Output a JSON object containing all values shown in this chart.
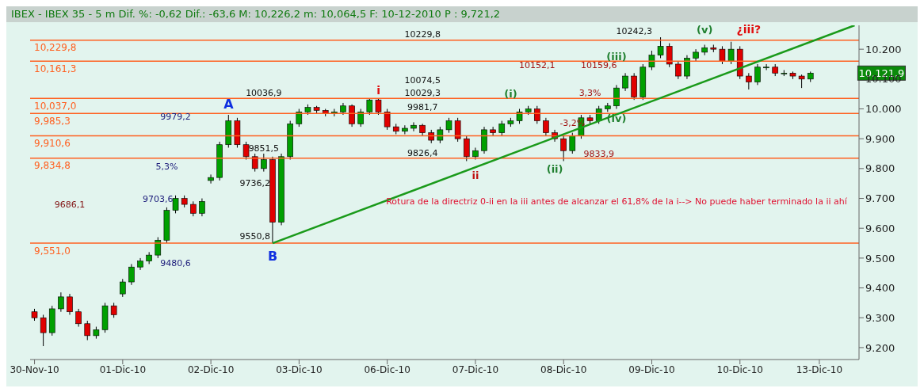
{
  "chart_data": {
    "type": "candlestick",
    "title": "IBEX - IBEX 35 - 5 m Dif. %: -0,62 Dif.: -63,6 M: 10,226,2 m: 10,064,5 F: 10-12-2010 P : 9,721,2",
    "categories": [
      "30-Nov-10",
      null,
      null,
      null,
      null,
      null,
      null,
      null,
      null,
      null,
      "01-Dic-10",
      null,
      null,
      null,
      null,
      null,
      null,
      null,
      null,
      null,
      "02-Dic-10",
      null,
      null,
      null,
      null,
      null,
      null,
      null,
      null,
      null,
      "03-Dic-10",
      null,
      null,
      null,
      null,
      null,
      null,
      null,
      null,
      null,
      "06-Dic-10",
      null,
      null,
      null,
      null,
      null,
      null,
      null,
      null,
      null,
      "07-Dic-10",
      null,
      null,
      null,
      null,
      null,
      null,
      null,
      null,
      null,
      "08-Dic-10",
      null,
      null,
      null,
      null,
      null,
      null,
      null,
      null,
      null,
      "09-Dic-10",
      null,
      null,
      null,
      null,
      null,
      null,
      null,
      null,
      null,
      "10-Dic-10",
      null,
      null,
      null,
      null,
      null,
      null,
      null,
      null,
      "13-Dic-10",
      null,
      null,
      null,
      null
    ],
    "ohlc": [
      [
        9320,
        9330,
        9290,
        9300
      ],
      [
        9300,
        9310,
        9205,
        9250
      ],
      [
        9250,
        9340,
        9240,
        9330
      ],
      [
        9330,
        9385,
        9320,
        9370
      ],
      [
        9370,
        9380,
        9310,
        9320
      ],
      [
        9320,
        9330,
        9270,
        9280
      ],
      [
        9280,
        9290,
        9225,
        9240
      ],
      [
        9240,
        9270,
        9230,
        9260
      ],
      [
        9260,
        9350,
        9250,
        9340
      ],
      [
        9340,
        9350,
        9300,
        9310
      ],
      [
        9380,
        9430,
        9370,
        9420
      ],
      [
        9420,
        9480,
        9410,
        9470
      ],
      [
        9470,
        9500,
        9460,
        9490
      ],
      [
        9490,
        9520,
        9480,
        9510
      ],
      [
        9510,
        9570,
        9500,
        9560
      ],
      [
        9560,
        9670,
        9550,
        9660
      ],
      [
        9660,
        9710,
        9650,
        9700
      ],
      [
        9700,
        9710,
        9670,
        9680
      ],
      [
        9680,
        9690,
        9640,
        9650
      ],
      [
        9650,
        9700,
        9640,
        9690
      ],
      [
        9760,
        9780,
        9750,
        9770
      ],
      [
        9770,
        9890,
        9760,
        9880
      ],
      [
        9880,
        9980,
        9870,
        9960
      ],
      [
        9960,
        9970,
        9870,
        9880
      ],
      [
        9880,
        9890,
        9830,
        9840
      ],
      [
        9840,
        9850,
        9790,
        9800
      ],
      [
        9800,
        9850,
        9790,
        9830
      ],
      [
        9830,
        9840,
        9550,
        9620
      ],
      [
        9620,
        9850,
        9610,
        9840
      ],
      [
        9840,
        9960,
        9830,
        9950
      ],
      [
        9950,
        10000,
        9940,
        9990
      ],
      [
        9990,
        10015,
        9980,
        10005
      ],
      [
        10005,
        10010,
        9985,
        9995
      ],
      [
        9995,
        10000,
        9975,
        9985
      ],
      [
        9985,
        10000,
        9975,
        9990
      ],
      [
        9990,
        10020,
        9980,
        10010
      ],
      [
        10010,
        10015,
        9940,
        9950
      ],
      [
        9950,
        10000,
        9940,
        9990
      ],
      [
        9990,
        10035,
        9980,
        10030
      ],
      [
        10030,
        10035,
        9980,
        9990
      ],
      [
        9990,
        10000,
        9930,
        9940
      ],
      [
        9940,
        9950,
        9915,
        9925
      ],
      [
        9925,
        9945,
        9915,
        9935
      ],
      [
        9935,
        9955,
        9925,
        9945
      ],
      [
        9945,
        9950,
        9910,
        9920
      ],
      [
        9920,
        9930,
        9885,
        9895
      ],
      [
        9895,
        9940,
        9885,
        9930
      ],
      [
        9930,
        9970,
        9920,
        9960
      ],
      [
        9960,
        9970,
        9890,
        9900
      ],
      [
        9900,
        9910,
        9825,
        9840
      ],
      [
        9840,
        9870,
        9830,
        9860
      ],
      [
        9860,
        9940,
        9850,
        9930
      ],
      [
        9930,
        9940,
        9910,
        9920
      ],
      [
        9920,
        9960,
        9910,
        9950
      ],
      [
        9950,
        9970,
        9940,
        9960
      ],
      [
        9960,
        10000,
        9950,
        9990
      ],
      [
        9990,
        10010,
        9980,
        10000
      ],
      [
        10000,
        10010,
        9950,
        9960
      ],
      [
        9960,
        9970,
        9910,
        9920
      ],
      [
        9920,
        9930,
        9890,
        9900
      ],
      [
        9900,
        9910,
        9825,
        9860
      ],
      [
        9860,
        9920,
        9850,
        9910
      ],
      [
        9910,
        9980,
        9900,
        9970
      ],
      [
        9970,
        9980,
        9950,
        9960
      ],
      [
        9960,
        10010,
        9950,
        10000
      ],
      [
        10000,
        10020,
        9990,
        10010
      ],
      [
        10010,
        10080,
        10000,
        10070
      ],
      [
        10070,
        10120,
        10060,
        10110
      ],
      [
        10110,
        10120,
        10030,
        10040
      ],
      [
        10040,
        10150,
        10030,
        10140
      ],
      [
        10140,
        10195,
        10130,
        10180
      ],
      [
        10180,
        10240,
        10170,
        10210
      ],
      [
        10210,
        10220,
        10140,
        10150
      ],
      [
        10150,
        10160,
        10100,
        10110
      ],
      [
        10110,
        10180,
        10100,
        10170
      ],
      [
        10170,
        10200,
        10160,
        10190
      ],
      [
        10190,
        10215,
        10180,
        10205
      ],
      [
        10205,
        10215,
        10190,
        10200
      ],
      [
        10200,
        10210,
        10150,
        10160
      ],
      [
        10160,
        10225,
        10150,
        10200
      ],
      [
        10200,
        10210,
        10100,
        10110
      ],
      [
        10110,
        10120,
        10065,
        10090
      ],
      [
        10090,
        10150,
        10080,
        10140
      ],
      [
        10140,
        10150,
        10130,
        10140
      ],
      [
        10140,
        10150,
        10110,
        10120
      ],
      [
        10120,
        10130,
        10110,
        10120
      ],
      [
        10120,
        10125,
        10100,
        10110
      ],
      [
        10110,
        10115,
        10070,
        10100
      ],
      [
        10100,
        10125,
        10090,
        10120
      ],
      null,
      null,
      null,
      null,
      null
    ],
    "series": [
      {
        "type": "line",
        "color": "#1a9a1a",
        "values": [
          null,
          null,
          null,
          null,
          null,
          null,
          null,
          null,
          null,
          null,
          null,
          null,
          null,
          null,
          null,
          null,
          null,
          null,
          null,
          null,
          null,
          null,
          null,
          null,
          null,
          null,
          null,
          9550,
          null,
          null,
          null,
          null,
          null,
          null,
          null,
          null,
          null,
          null,
          null,
          null,
          null,
          null,
          null,
          null,
          null,
          null,
          null,
          null,
          null,
          null,
          null,
          null,
          null,
          null,
          null,
          null,
          null,
          null,
          null,
          null,
          null,
          null,
          null,
          null,
          null,
          null,
          null,
          null,
          null,
          null,
          null,
          null,
          null,
          null,
          null,
          null,
          null,
          null,
          null,
          null,
          null,
          null,
          null,
          null,
          null,
          null,
          null,
          null,
          null,
          null,
          null,
          null,
          null,
          10280
        ]
      }
    ],
    "ylim": [
      9160,
      10280
    ],
    "yticks": [
      {
        "value": 9200,
        "label": "9.200"
      },
      {
        "value": 9300,
        "label": "9.300"
      },
      {
        "value": 9400,
        "label": "9.400"
      },
      {
        "value": 9500,
        "label": "9.500"
      },
      {
        "value": 9600,
        "label": "9.600"
      },
      {
        "value": 9700,
        "label": "9.700"
      },
      {
        "value": 9800,
        "label": "9.800"
      },
      {
        "value": 9900,
        "label": "9.900"
      },
      {
        "value": 10000,
        "label": "10.000"
      },
      {
        "value": 10100,
        "label": "10.100"
      },
      {
        "value": 10200,
        "label": "10.200"
      }
    ],
    "ref_lines": [
      {
        "axis": "y",
        "value": 10230,
        "label": "10,229,8",
        "color": "#ff6020"
      },
      {
        "axis": "y",
        "value": 10160,
        "label": "10,161,3",
        "color": "#ff6020"
      },
      {
        "axis": "y",
        "value": 10035,
        "label": "10,037,0",
        "color": "#ff6020"
      },
      {
        "axis": "y",
        "value": 9985,
        "label": "9,985,3",
        "color": "#ff6020"
      },
      {
        "axis": "y",
        "value": 9910,
        "label": "9,910,6",
        "color": "#ff6020"
      },
      {
        "axis": "y",
        "value": 9835,
        "label": "9,834,8",
        "color": "#ff6020"
      },
      {
        "axis": "y",
        "value": 9550,
        "label": "9,551,0",
        "color": "#ff6020"
      }
    ],
    "annotations": [
      "A",
      "B",
      "i",
      "ii",
      "(i)",
      "(ii)",
      "(iii)",
      "(iv)",
      "(v)",
      "¿iii?",
      "Rotura de la directriz 0-ii en la iii antes de alcanzar el 61,8% de la i--> No puede haber terminado la ii ahí",
      "10036,9",
      "9550,8",
      "9851,5",
      "9736,2",
      "10229,8",
      "10074,5",
      "10029,3",
      "9981,7",
      "9826,4",
      "10242,3",
      "10152,1",
      "10159,6",
      "3,3%",
      "-3,2%",
      "9833,9",
      "9979,2",
      "5,3%",
      "9703,6",
      "9686,1",
      "9480,6",
      "10.121,9"
    ]
  }
}
